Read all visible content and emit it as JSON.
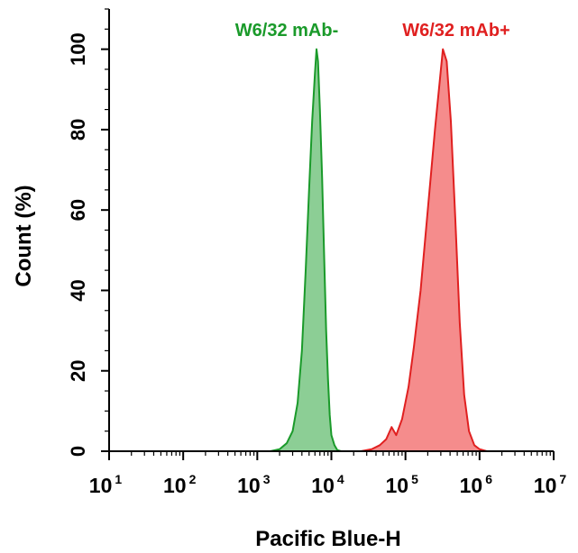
{
  "chart_data": {
    "type": "area",
    "xlabel": "Pacific Blue-H",
    "ylabel": "Count (%)",
    "xscale": "log",
    "xlim": [
      10,
      10000000
    ],
    "ylim": [
      0,
      110
    ],
    "x_ticks": [
      {
        "base": "10",
        "exp": "1",
        "value": 10
      },
      {
        "base": "10",
        "exp": "2",
        "value": 100
      },
      {
        "base": "10",
        "exp": "3",
        "value": 1000
      },
      {
        "base": "10",
        "exp": "4",
        "value": 10000
      },
      {
        "base": "10",
        "exp": "5",
        "value": 100000
      },
      {
        "base": "10",
        "exp": "6",
        "value": 1000000
      },
      {
        "base": "10",
        "exp": "7",
        "value": 10000000
      }
    ],
    "y_ticks": [
      "0",
      "20",
      "40",
      "60",
      "80",
      "100"
    ],
    "grid": false,
    "series": [
      {
        "name": "W6/32 mAb-",
        "color": "#1a9a2a",
        "fill": "#7fc98a",
        "x": [
          1500,
          2000,
          2500,
          3000,
          3500,
          4000,
          4500,
          5000,
          5500,
          6000,
          6300,
          6600,
          7000,
          7500,
          8000,
          8500,
          9000,
          9500,
          10000,
          11000,
          12000,
          13500
        ],
        "y": [
          0,
          0.5,
          2,
          5,
          12,
          25,
          45,
          65,
          82,
          94,
          100,
          97,
          85,
          68,
          48,
          30,
          18,
          9,
          4,
          1.5,
          0.3,
          0
        ]
      },
      {
        "name": "W6/32 mAb+",
        "color": "#e02020",
        "fill": "#f48080",
        "x": [
          25000,
          35000,
          45000,
          55000,
          65000,
          75000,
          90000,
          110000,
          130000,
          160000,
          200000,
          250000,
          290000,
          320000,
          360000,
          410000,
          470000,
          540000,
          620000,
          720000,
          850000,
          1000000,
          1250000
        ],
        "y": [
          0,
          0.5,
          1.5,
          3,
          6,
          4,
          8,
          16,
          26,
          40,
          60,
          80,
          92,
          100,
          97,
          82,
          58,
          32,
          14,
          5,
          1.5,
          0.5,
          0
        ]
      }
    ]
  }
}
